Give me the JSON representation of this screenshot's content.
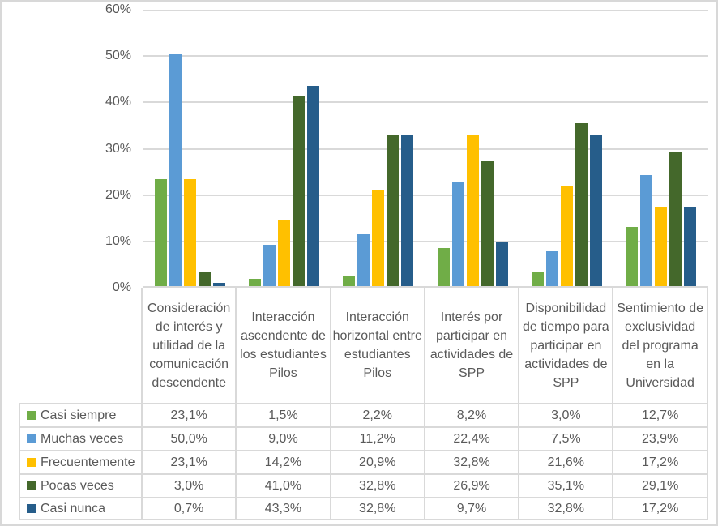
{
  "colors": {
    "background": "#FFFFFF",
    "border": "#D8D8D8",
    "grid": "#D9D9D9",
    "text": "#595959"
  },
  "chart_data": {
    "type": "bar",
    "title": "",
    "xlabel": "",
    "ylabel": "",
    "legend_position": "data-table-left-column",
    "data_table_shown": true,
    "grid": true,
    "categories": [
      "Consideración de interés y utilidad de la comunicación descendente",
      "Interacción ascendente de los estudiantes Pilos",
      "Interacción horizontal entre estudiantes Pilos",
      "Interés por participar en actividades de SPP",
      "Disponibilidad de tiempo para participar en actividades de SPP",
      "Sentimiento de exclusividad del programa en la Universidad"
    ],
    "series": [
      {
        "name": "Casi siempre",
        "color": "#70AD47",
        "values": [
          23.1,
          1.5,
          2.2,
          8.2,
          3.0,
          12.7
        ],
        "labels": [
          "23,1%",
          "1,5%",
          "2,2%",
          "8,2%",
          "3,0%",
          "12,7%"
        ]
      },
      {
        "name": "Muchas veces",
        "color": "#5B9BD5",
        "values": [
          50.0,
          9.0,
          11.2,
          22.4,
          7.5,
          23.9
        ],
        "labels": [
          "50,0%",
          "9,0%",
          "11,2%",
          "22,4%",
          "7,5%",
          "23,9%"
        ]
      },
      {
        "name": "Frecuentemente",
        "color": "#FFC000",
        "values": [
          23.1,
          14.2,
          20.9,
          32.8,
          21.6,
          17.2
        ],
        "labels": [
          "23,1%",
          "14,2%",
          "20,9%",
          "32,8%",
          "21,6%",
          "17,2%"
        ]
      },
      {
        "name": "Pocas veces",
        "color": "#44682B",
        "values": [
          3.0,
          41.0,
          32.8,
          26.9,
          35.1,
          29.1
        ],
        "labels": [
          "3,0%",
          "41,0%",
          "32,8%",
          "26,9%",
          "35,1%",
          "29,1%"
        ]
      },
      {
        "name": "Casi nunca",
        "color": "#265D8A",
        "values": [
          0.7,
          43.3,
          32.8,
          9.7,
          32.8,
          17.2
        ],
        "labels": [
          "0,7%",
          "43,3%",
          "32,8%",
          "9,7%",
          "32,8%",
          "17,2%"
        ]
      }
    ],
    "y_axis": {
      "min": 0,
      "max": 60,
      "step": 10,
      "ticks": [
        "0%",
        "10%",
        "20%",
        "30%",
        "40%",
        "50%",
        "60%"
      ]
    }
  }
}
